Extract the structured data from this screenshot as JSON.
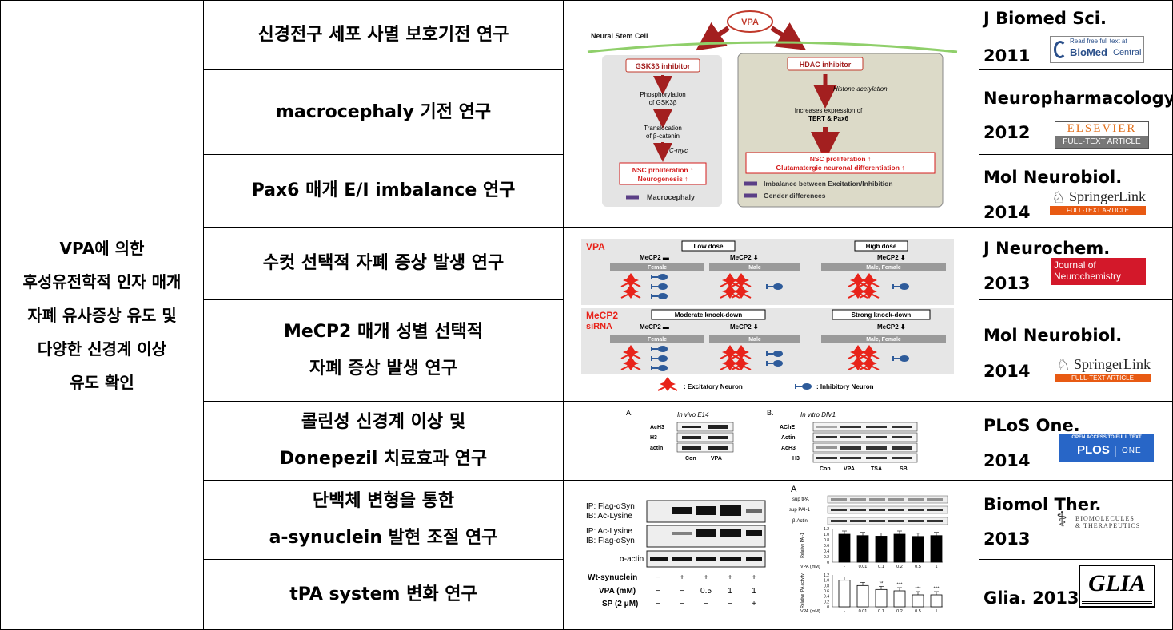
{
  "colors": {
    "border": "#000000",
    "arrow_red": "#a31f1f",
    "highlight_red": "#d41c1c",
    "neuron_red": "#e8231a",
    "inhibitory_blue": "#2e5b9a",
    "panel_grey": "#dcdcdc",
    "panel_tan": "#dcdac8",
    "membrane_green": "#8fcf6a",
    "plos_blue": "#2866c7",
    "springer_orange": "#e85a13",
    "jneuro_red": "#d3182a"
  },
  "left_summary": {
    "lines": [
      "VPA에 의한",
      "후성유전학적 인자 매개",
      "자폐 유사증상 유도 및",
      "다양한 신경계 이상",
      "유도 확인"
    ]
  },
  "rows": [
    {
      "topic_lines": [
        "신경전구 세포 사멸 보호기전 연구"
      ],
      "journal": "J Biomed Sci.",
      "year": "2011",
      "logo": "biomed-central"
    },
    {
      "topic_lines": [
        "macrocephaly 기전 연구"
      ],
      "journal": "Neuropharmacology.",
      "year": "2012",
      "logo": "elsevier"
    },
    {
      "topic_lines": [
        "Pax6 매개 E/I imbalance 연구"
      ],
      "journal": "Mol Neurobiol.",
      "year": "2014",
      "logo": "springerlink"
    },
    {
      "topic_lines": [
        "수컷 선택적 자폐 증상 발생 연구"
      ],
      "journal": "J Neurochem.",
      "year": "2013",
      "logo": "journal-of-neurochemistry"
    },
    {
      "topic_lines": [
        "MeCP2 매개 성별 선택적",
        "자폐 증상 발생 연구"
      ],
      "journal": "Mol Neurobiol.",
      "year": "2014",
      "logo": "springerlink"
    },
    {
      "topic_lines": [
        "콜린성 신경계 이상 및",
        "Donepezil 치료효과 연구"
      ],
      "journal": "PLoS One.",
      "year": "2014",
      "logo": "plos-one"
    },
    {
      "topic_lines": [
        "단백체 변형을 통한",
        "a-synuclein 발현 조절 연구"
      ],
      "journal": "Biomol Ther.",
      "year": "2013",
      "logo": "biomolecules-therapeutics"
    },
    {
      "topic_lines": [
        "tPA system 변화 연구"
      ],
      "journal": "Glia. 2013",
      "year": "",
      "logo": "glia"
    }
  ],
  "logos": {
    "biomed": {
      "small": "Read free full text at",
      "big": "BioMed",
      "rest": "Central"
    },
    "elsevier": {
      "top": "ELSEVIER",
      "bottom": "FULL-TEXT ARTICLE"
    },
    "springer": {
      "name": "SpringerLink",
      "sub": "FULL-TEXT ARTICLE"
    },
    "jneuro": {
      "line1": "Journal of",
      "line2": "Neurochemistry"
    },
    "plos": {
      "top": "OPEN ACCESS TO FULL TEXT",
      "name": "PLOS",
      "sep": "|",
      "sub": "ONE"
    },
    "biomol": {
      "line1": "BIOMOLECULES",
      "line2": "& THERAPEUTICS"
    },
    "glia": {
      "name": "GLIA"
    }
  },
  "figure1": {
    "vpa": "VPA",
    "nsc": "Neural Stem Cell",
    "left_box": "GSK3β inhibitor",
    "left_step1a": "Phosphorylation",
    "left_step1b": "of GSK3β",
    "left_step2a": "Translocation",
    "left_step2b": "of β-catenin",
    "left_step3": "C-myc",
    "left_result1": "NSC proliferation ↑",
    "left_result2": "Neurogenesis ↑",
    "left_outcome": "Macrocephaly",
    "right_box": "HDAC inhibitor",
    "right_step1": "Histone acetylation",
    "right_step2a": "Increases expression of",
    "right_step2b": "TERT & Pax6",
    "right_result1": "NSC proliferation ↑",
    "right_result2": "Glutamatergic neuronal differentiation ↑",
    "right_outcome1": "Imbalance between Excitation/Inhibition",
    "right_outcome2": "Gender differences"
  },
  "figure2": {
    "vpa": "VPA",
    "low": "Low dose",
    "high": "High dose",
    "mecp2_eq": "MeCP2 ▬",
    "mecp2_down": "MeCP2 ⬇",
    "female": "Female",
    "male": "Male",
    "male_female": "Male, Female",
    "sirna1": "MeCP2",
    "sirna2": "siRNA",
    "moderate": "Moderate knock-down",
    "strong": "Strong knock-down",
    "legend_exc": ": Excitatory Neuron",
    "legend_inh": ": Inhibitory Neuron"
  },
  "figure3": {
    "a": "A.",
    "b": "B.",
    "a_title": "In vivo E14",
    "b_title": "In vitro DIV1",
    "a_rows": [
      "AcH3",
      "H3",
      "actin"
    ],
    "a_cols": [
      "Con",
      "VPA"
    ],
    "b_rows": [
      "AChE",
      "Actin",
      "AcH3",
      "H3"
    ],
    "b_cols": [
      "Con",
      "VPA",
      "TSA",
      "SB"
    ]
  },
  "figure4": {
    "rows": [
      "IP: Flag-αSyn",
      "IB: Ac-Lysine",
      "IP: Ac-Lysine",
      "IB: Flag-αSyn",
      "α-actin"
    ],
    "cond_labels": [
      "Wt-synuclein",
      "VPA (mM)",
      "SP (2 μM)"
    ],
    "cond_values": [
      [
        "−",
        "+",
        "+",
        "+",
        "+"
      ],
      [
        "−",
        "−",
        "0.5",
        "1",
        "1"
      ],
      [
        "−",
        "−",
        "−",
        "−",
        "+"
      ]
    ]
  },
  "figure5": {
    "a": "A",
    "blot_rows": [
      "sup tPA",
      "sup PAI-1",
      "β-Actin"
    ],
    "xlabel": "VPA (mM)",
    "x_ticks": [
      "-",
      "0.01",
      "0.1",
      "0.2",
      "0.5",
      "1"
    ],
    "y_ticks": [
      "1.2",
      "1.0",
      "0.8",
      "0.6",
      "0.4",
      "0.2",
      "0"
    ],
    "ylabel1": "Relative PAI-1",
    "ylabel2": "Relative tPA activity",
    "sig": [
      "**",
      "***",
      "***",
      "***"
    ]
  }
}
